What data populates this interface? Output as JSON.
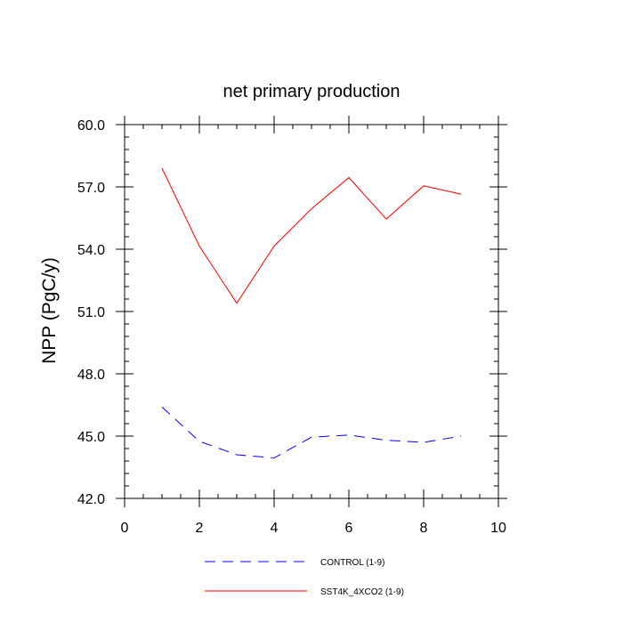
{
  "chart_data": {
    "type": "line",
    "title": "net primary production",
    "xlabel": "",
    "ylabel": "NPP  (PgC/y)",
    "xlim": [
      0,
      10
    ],
    "ylim": [
      42.0,
      60.0
    ],
    "xticks": [
      0,
      2,
      4,
      6,
      8,
      10
    ],
    "xtick_labels": [
      "0",
      "2",
      "4",
      "6",
      "8",
      "10"
    ],
    "yticks": [
      42.0,
      45.0,
      48.0,
      51.0,
      54.0,
      57.0,
      60.0
    ],
    "ytick_labels": [
      "42.0",
      "45.0",
      "48.0",
      "51.0",
      "54.0",
      "57.0",
      "60.0"
    ],
    "grid": false,
    "legend_position": "bottom",
    "series": [
      {
        "name": "CONTROL (1-9)",
        "color": "#0000ff",
        "style": "dashed",
        "x": [
          1,
          2,
          3,
          4,
          5,
          6,
          7,
          8,
          9
        ],
        "values": [
          46.4,
          44.75,
          44.1,
          43.95,
          44.95,
          45.05,
          44.8,
          44.7,
          45.0
        ]
      },
      {
        "name": "SST4K_4XCO2 (1-9)",
        "color": "#ff0000",
        "style": "solid",
        "x": [
          1,
          2,
          3,
          4,
          5,
          6,
          7,
          8,
          9
        ],
        "values": [
          57.9,
          54.15,
          51.4,
          54.15,
          55.95,
          57.45,
          55.45,
          57.05,
          56.65
        ]
      }
    ]
  }
}
